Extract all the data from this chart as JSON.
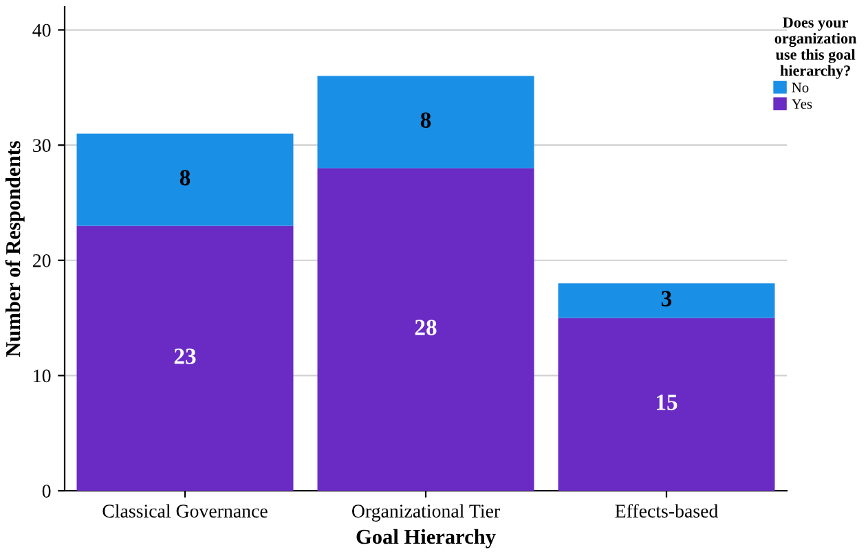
{
  "chart_data": {
    "type": "bar",
    "stacked": true,
    "xlabel": "Goal Hierarchy",
    "ylabel": "Number of Respondents",
    "legend_title": "Does your organization use this goal hierarchy?",
    "categories": [
      "Classical Governance",
      "Organizational Tier",
      "Effects-based"
    ],
    "series": [
      {
        "name": "Yes",
        "color": "#6a2bc4",
        "values": [
          23,
          28,
          15
        ]
      },
      {
        "name": "No",
        "color": "#1a8fe6",
        "values": [
          8,
          8,
          3
        ]
      }
    ],
    "ylim": [
      0,
      42
    ],
    "yticks": [
      0,
      10,
      20,
      30,
      40
    ],
    "grid": "y",
    "legend": "right",
    "data_labels": true
  }
}
